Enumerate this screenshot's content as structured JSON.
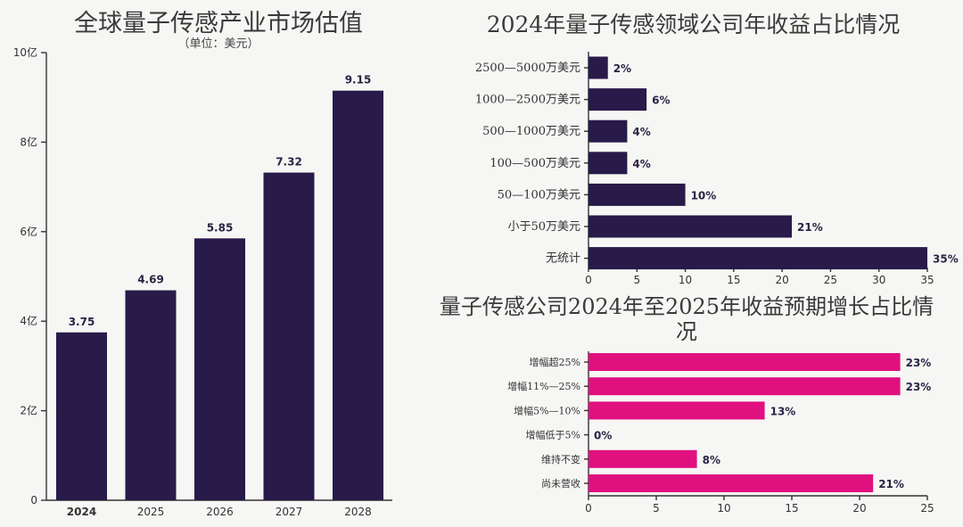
{
  "colors": {
    "bar_primary": "#281a49",
    "bar_accent": "#e0107f",
    "highlight_label": "#c0187a",
    "text": "#333333"
  },
  "chart_data": [
    {
      "type": "bar",
      "title": "全球量子传感产业市场估值",
      "subtitle": "（单位：美元）",
      "categories": [
        "2024",
        "2025",
        "2026",
        "2027",
        "2028"
      ],
      "values": [
        3.75,
        4.69,
        5.85,
        7.32,
        9.15
      ],
      "data_labels": [
        "3.75",
        "4.69",
        "5.85",
        "7.32",
        "9.15"
      ],
      "highlight_category": "2024",
      "ylim": [
        0,
        10
      ],
      "yticks": [
        0,
        2,
        4,
        6,
        8,
        10
      ],
      "ytick_labels": [
        "0",
        "2亿",
        "4亿",
        "6亿",
        "8亿",
        "10亿"
      ],
      "grid": false
    },
    {
      "type": "bar",
      "orientation": "horizontal",
      "title": "2024年量子传感领域公司年收益占比情况",
      "categories": [
        "2500—5000万美元",
        "1000—2500万美元",
        "500—1000万美元",
        "100—500万美元",
        "50—100万美元",
        "小于50万美元",
        "无统计"
      ],
      "values": [
        2,
        6,
        4,
        4,
        10,
        21,
        35
      ],
      "data_labels": [
        "2%",
        "6%",
        "4%",
        "4%",
        "10%",
        "21%",
        "35%"
      ],
      "xlim": [
        0,
        35
      ],
      "xticks": [
        0,
        5,
        10,
        15,
        20,
        25,
        30,
        35
      ],
      "grid": false
    },
    {
      "type": "bar",
      "orientation": "horizontal",
      "title": "量子传感公司2024年至2025年收益预期增长占比情况",
      "categories": [
        "增幅超25%",
        "增幅11%—25%",
        "增幅5%—10%",
        "增幅低于5%",
        "维持不变",
        "尚未营收"
      ],
      "values": [
        23,
        23,
        13,
        0,
        8,
        21
      ],
      "data_labels": [
        "23%",
        "23%",
        "13%",
        "0%",
        "8%",
        "21%"
      ],
      "xlim": [
        0,
        25
      ],
      "xticks": [
        0,
        5,
        10,
        15,
        20,
        25
      ],
      "grid": false
    }
  ]
}
